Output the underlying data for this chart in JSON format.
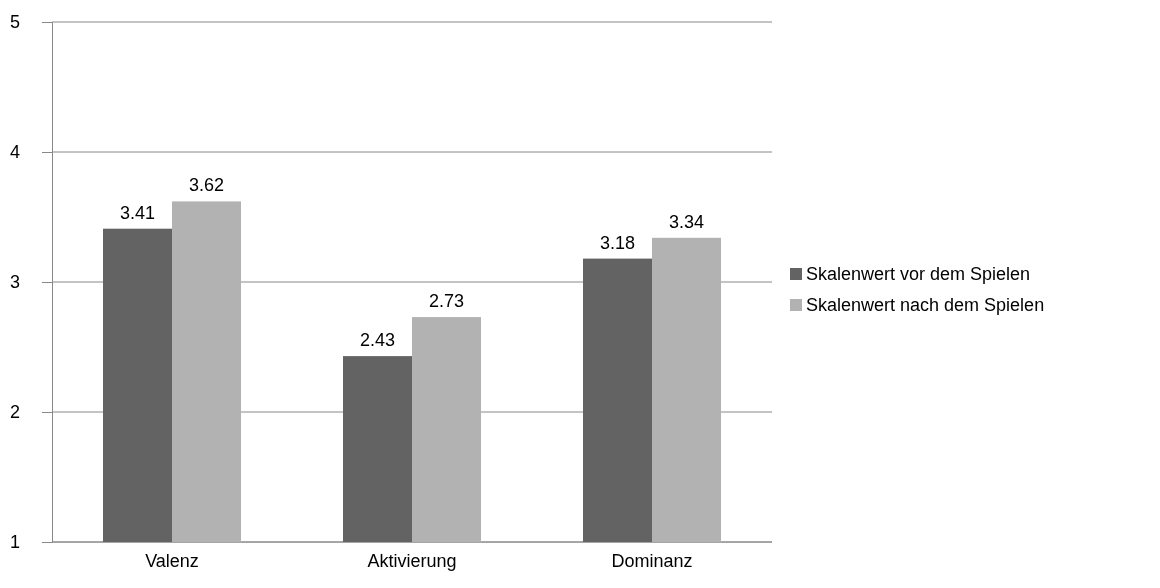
{
  "chart_data": {
    "type": "bar",
    "categories": [
      "Valenz",
      "Aktivierung",
      "Dominanz"
    ],
    "series": [
      {
        "name": "Skalenwert vor dem Spielen",
        "color": "#636363",
        "values": [
          3.41,
          2.43,
          3.18
        ]
      },
      {
        "name": "Skalenwert nach dem Spielen",
        "color": "#b2b2b2",
        "values": [
          3.62,
          2.73,
          3.34
        ]
      }
    ],
    "ylim": [
      1,
      5
    ],
    "yticks": [
      1,
      2,
      3,
      4,
      5
    ],
    "grid": "y",
    "legend": "right",
    "data_labels": true
  }
}
